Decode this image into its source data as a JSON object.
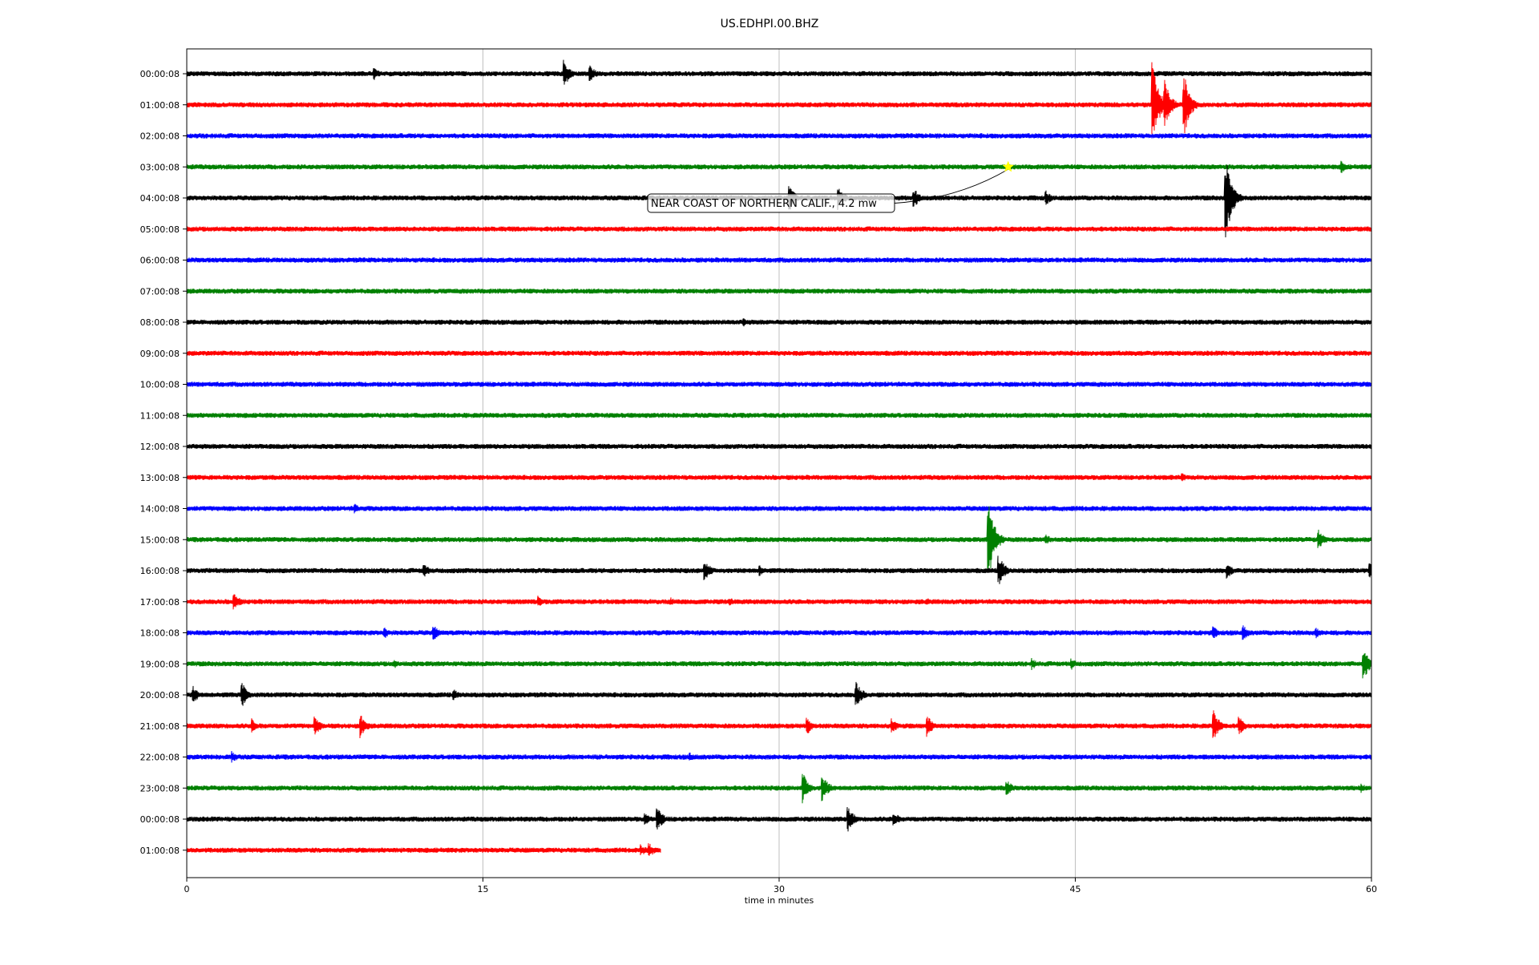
{
  "chart_data": {
    "type": "line",
    "title": "US.EDHPI.00.BHZ",
    "xlabel": "time in minutes",
    "ylabel": "",
    "xlim": [
      0,
      60
    ],
    "x_ticks": [
      0,
      15,
      30,
      45,
      60
    ],
    "grid": "vertical",
    "colors": [
      "#000000",
      "#ff0000",
      "#0000ff",
      "#008000"
    ],
    "rows": [
      {
        "label": "00:00:08",
        "color": "#000000",
        "end_minute": 60,
        "events": [
          {
            "t": 9.5,
            "amp": 8
          },
          {
            "t": 19.1,
            "amp": 18
          },
          {
            "t": 20.4,
            "amp": 12
          }
        ]
      },
      {
        "label": "01:00:08",
        "color": "#ff0000",
        "end_minute": 60,
        "events": [
          {
            "t": 48.9,
            "amp": 55
          },
          {
            "t": 49.5,
            "amp": 35
          },
          {
            "t": 50.5,
            "amp": 42
          }
        ]
      },
      {
        "label": "02:00:08",
        "color": "#0000ff",
        "end_minute": 60,
        "events": []
      },
      {
        "label": "03:00:08",
        "color": "#008000",
        "end_minute": 60,
        "events": [
          {
            "t": 58.5,
            "amp": 8
          }
        ]
      },
      {
        "label": "04:00:08",
        "color": "#000000",
        "end_minute": 60,
        "events": [
          {
            "t": 30.5,
            "amp": 18
          },
          {
            "t": 33.0,
            "amp": 15
          },
          {
            "t": 36.8,
            "amp": 14
          },
          {
            "t": 43.5,
            "amp": 10
          },
          {
            "t": 52.6,
            "amp": 60
          }
        ]
      },
      {
        "label": "05:00:08",
        "color": "#ff0000",
        "end_minute": 60,
        "events": []
      },
      {
        "label": "06:00:08",
        "color": "#0000ff",
        "end_minute": 60,
        "events": []
      },
      {
        "label": "07:00:08",
        "color": "#008000",
        "end_minute": 60,
        "events": []
      },
      {
        "label": "08:00:08",
        "color": "#000000",
        "end_minute": 60,
        "events": [
          {
            "t": 28.2,
            "amp": 6
          }
        ]
      },
      {
        "label": "09:00:08",
        "color": "#ff0000",
        "end_minute": 60,
        "events": []
      },
      {
        "label": "10:00:08",
        "color": "#0000ff",
        "end_minute": 60,
        "events": []
      },
      {
        "label": "11:00:08",
        "color": "#008000",
        "end_minute": 60,
        "events": []
      },
      {
        "label": "12:00:08",
        "color": "#000000",
        "end_minute": 60,
        "events": []
      },
      {
        "label": "13:00:08",
        "color": "#ff0000",
        "end_minute": 60,
        "events": [
          {
            "t": 50.4,
            "amp": 6
          }
        ]
      },
      {
        "label": "14:00:08",
        "color": "#0000ff",
        "end_minute": 60,
        "events": [
          {
            "t": 8.5,
            "amp": 7
          }
        ]
      },
      {
        "label": "15:00:08",
        "color": "#008000",
        "end_minute": 60,
        "events": [
          {
            "t": 40.6,
            "amp": 52
          },
          {
            "t": 43.5,
            "amp": 8
          },
          {
            "t": 57.3,
            "amp": 14
          }
        ]
      },
      {
        "label": "16:00:08",
        "color": "#000000",
        "end_minute": 60,
        "events": [
          {
            "t": 12.0,
            "amp": 10
          },
          {
            "t": 26.2,
            "amp": 16
          },
          {
            "t": 29.0,
            "amp": 8
          },
          {
            "t": 41.1,
            "amp": 22
          },
          {
            "t": 52.7,
            "amp": 10
          },
          {
            "t": 59.9,
            "amp": 10
          }
        ]
      },
      {
        "label": "17:00:08",
        "color": "#ff0000",
        "end_minute": 60,
        "events": [
          {
            "t": 2.4,
            "amp": 12
          },
          {
            "t": 17.8,
            "amp": 8
          },
          {
            "t": 24.5,
            "amp": 6
          },
          {
            "t": 27.5,
            "amp": 6
          },
          {
            "t": 37.5,
            "amp": 5
          }
        ]
      },
      {
        "label": "18:00:08",
        "color": "#0000ff",
        "end_minute": 60,
        "events": [
          {
            "t": 10.0,
            "amp": 8
          },
          {
            "t": 12.5,
            "amp": 10
          },
          {
            "t": 52.0,
            "amp": 8
          },
          {
            "t": 53.5,
            "amp": 10
          },
          {
            "t": 57.2,
            "amp": 7
          }
        ]
      },
      {
        "label": "19:00:08",
        "color": "#008000",
        "end_minute": 60,
        "events": [
          {
            "t": 10.5,
            "amp": 6
          },
          {
            "t": 42.8,
            "amp": 8
          },
          {
            "t": 44.8,
            "amp": 8
          },
          {
            "t": 59.6,
            "amp": 22
          }
        ]
      },
      {
        "label": "20:00:08",
        "color": "#000000",
        "end_minute": 60,
        "events": [
          {
            "t": 0.3,
            "amp": 12
          },
          {
            "t": 2.8,
            "amp": 16
          },
          {
            "t": 13.5,
            "amp": 8
          },
          {
            "t": 33.9,
            "amp": 18
          }
        ]
      },
      {
        "label": "21:00:08",
        "color": "#ff0000",
        "end_minute": 60,
        "events": [
          {
            "t": 3.3,
            "amp": 10
          },
          {
            "t": 6.5,
            "amp": 12
          },
          {
            "t": 8.8,
            "amp": 16
          },
          {
            "t": 31.4,
            "amp": 12
          },
          {
            "t": 35.7,
            "amp": 10
          },
          {
            "t": 37.5,
            "amp": 14
          },
          {
            "t": 52.0,
            "amp": 20
          },
          {
            "t": 53.3,
            "amp": 12
          }
        ]
      },
      {
        "label": "22:00:08",
        "color": "#0000ff",
        "end_minute": 60,
        "events": [
          {
            "t": 2.3,
            "amp": 8
          },
          {
            "t": 25.5,
            "amp": 6
          }
        ]
      },
      {
        "label": "23:00:08",
        "color": "#008000",
        "end_minute": 60,
        "events": [
          {
            "t": 31.2,
            "amp": 20
          },
          {
            "t": 32.2,
            "amp": 18
          },
          {
            "t": 41.5,
            "amp": 12
          },
          {
            "t": 59.5,
            "amp": 6
          }
        ]
      },
      {
        "label": "00:00:08",
        "color": "#000000",
        "end_minute": 60,
        "events": [
          {
            "t": 23.2,
            "amp": 8
          },
          {
            "t": 23.8,
            "amp": 18
          },
          {
            "t": 33.5,
            "amp": 16
          },
          {
            "t": 35.8,
            "amp": 10
          }
        ]
      },
      {
        "label": "01:00:08",
        "color": "#ff0000",
        "end_minute": 24.0,
        "events": [
          {
            "t": 23.0,
            "amp": 8
          },
          {
            "t": 23.4,
            "amp": 10
          }
        ]
      }
    ],
    "annotation": {
      "text": "NEAR COAST OF NORTHERN CALIF., 4.2 mw",
      "row": 3,
      "t": 41.6,
      "marker": "star",
      "marker_color": "#ffff00"
    }
  }
}
